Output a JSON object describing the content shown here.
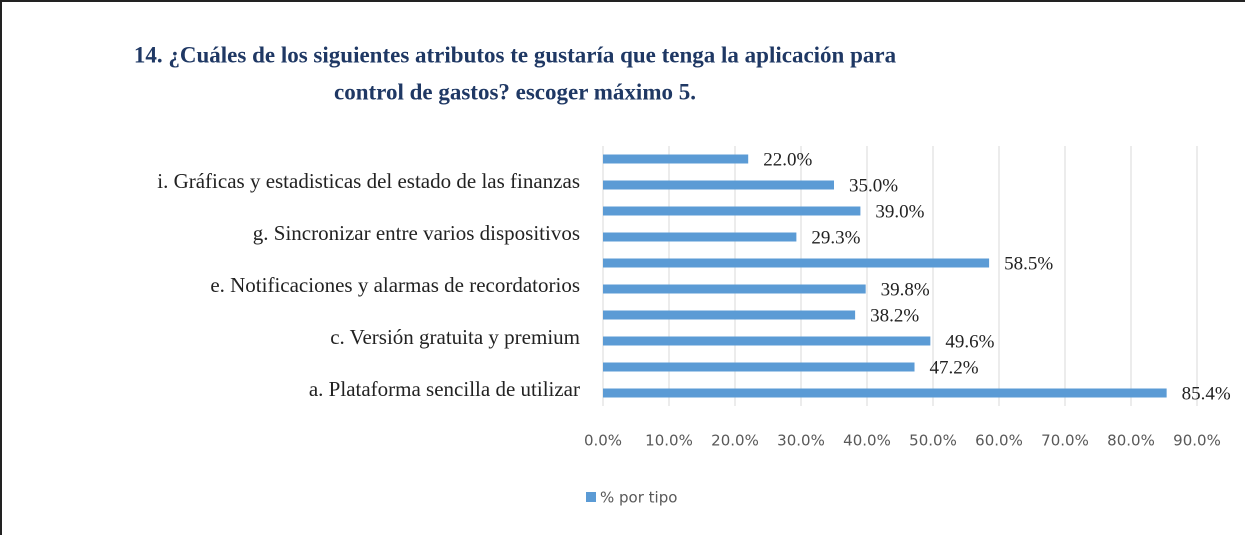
{
  "chart_data": {
    "type": "bar",
    "orientation": "horizontal",
    "title": [
      "14. ¿Cuáles de los siguientes atributos te gustaría que tenga la aplicación para",
      "control de gastos? escoger máximo 5."
    ],
    "categories": [
      "a. Plataforma sencilla de utilizar",
      null,
      "c. Versión gratuita y premium",
      null,
      "e. Notificaciones y alarmas de recordatorios",
      null,
      "g. Sincronizar entre varios dispositivos",
      null,
      "i. Gráficas y estadisticas del estado de las finanzas",
      null
    ],
    "series": [
      {
        "name": "% por tipo",
        "color": "#5b9bd5",
        "values": [
          85.4,
          47.2,
          49.6,
          38.2,
          39.8,
          58.5,
          29.3,
          39.0,
          35.0,
          22.0
        ],
        "value_labels": [
          "85.4%",
          "47.2%",
          "49.6%",
          "38.2%",
          "39.8%",
          "58.5%",
          "29.3%",
          "39.0%",
          "35.0%",
          "22.0%"
        ]
      }
    ],
    "xlim": [
      0,
      90
    ],
    "xticks": [
      {
        "value": 0,
        "label": "0.0%"
      },
      {
        "value": 10,
        "label": "10.0%"
      },
      {
        "value": 20,
        "label": "20.0%"
      },
      {
        "value": 30,
        "label": "30.0%"
      },
      {
        "value": 40,
        "label": "40.0%"
      },
      {
        "value": 50,
        "label": "50.0%"
      },
      {
        "value": 60,
        "label": "60.0%"
      },
      {
        "value": 70,
        "label": "70.0%"
      },
      {
        "value": 80,
        "label": "80.0%"
      },
      {
        "value": 90,
        "label": "90.0%"
      }
    ],
    "grid": true,
    "legend": "bottom"
  }
}
